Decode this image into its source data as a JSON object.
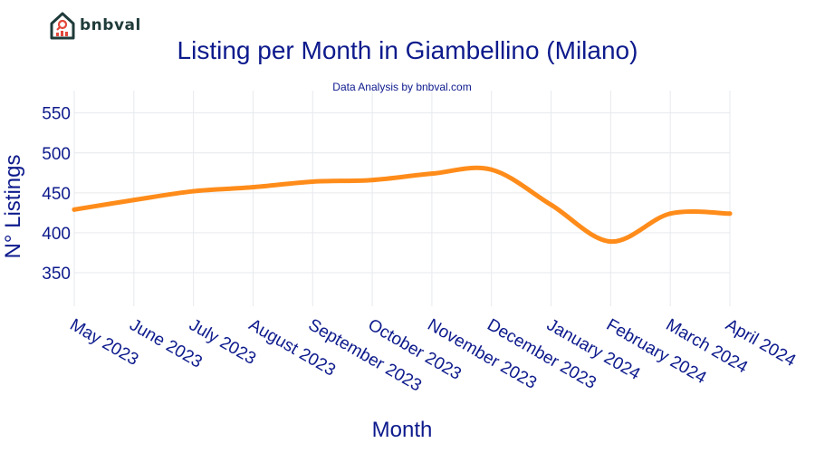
{
  "brand": {
    "name": "bnbval"
  },
  "colors": {
    "text": "#0d1a8c",
    "line": "#ff8c1a",
    "grid": "#e6e9ee",
    "logo": "#1f3b3a",
    "logo_accent": "#e3473a"
  },
  "icons": {
    "logo": "house-chart-icon"
  },
  "chart_data": {
    "type": "line",
    "title": "Listing per Month in Giambellino (Milano)",
    "subtitle": "Data Analysis by bnbval.com",
    "xlabel": "Month",
    "ylabel": "N° Listings",
    "categories": [
      "May 2023",
      "June 2023",
      "July 2023",
      "August 2023",
      "September 2023",
      "October 2023",
      "November 2023",
      "December 2023",
      "January 2024",
      "February 2024",
      "March 2024",
      "April 2024"
    ],
    "values": [
      429,
      441,
      452,
      457,
      464,
      466,
      474,
      479,
      435,
      389,
      424,
      424
    ],
    "yticks": [
      350,
      400,
      450,
      500,
      550
    ],
    "ylim": [
      308,
      578
    ],
    "grid": true,
    "legend": false
  }
}
